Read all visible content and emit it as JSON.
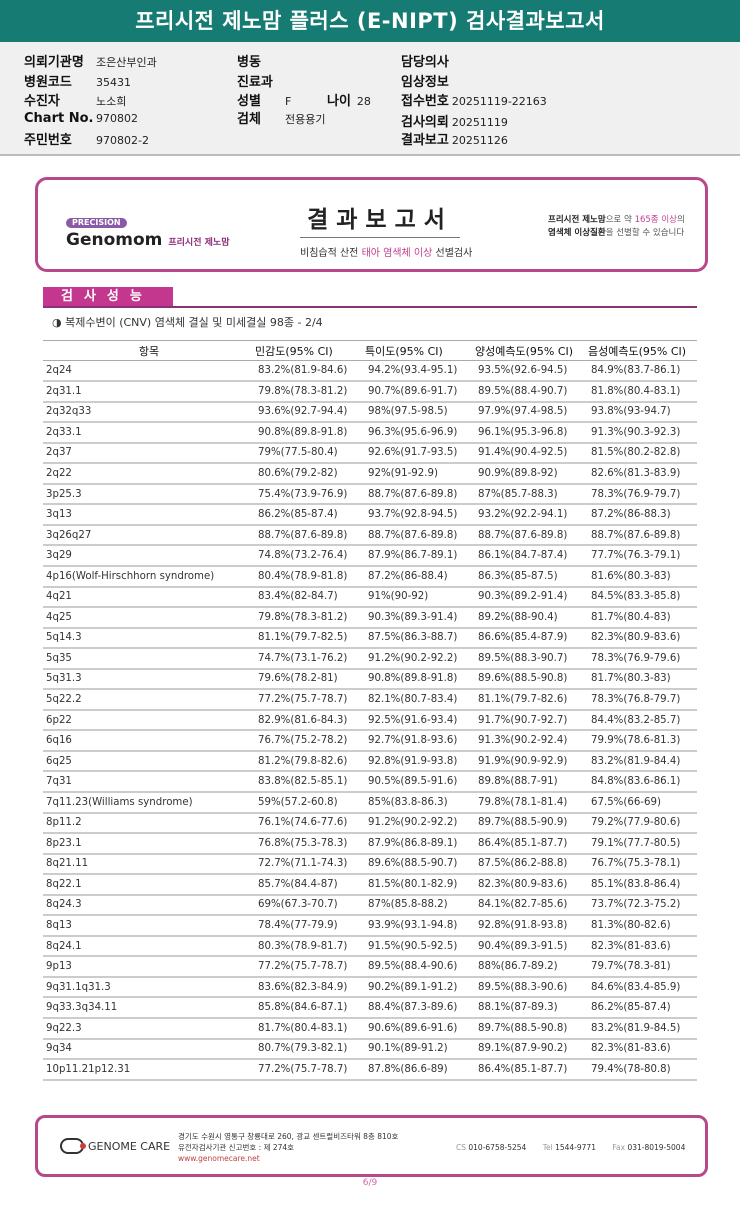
{
  "title": "프리시전 제노맘 플러스 (E-NIPT) 검사결과보고서",
  "info": {
    "institution": {
      "label": "의뢰기관명",
      "value": "조은산부인과"
    },
    "hospital_code": {
      "label": "병원코드",
      "value": "35431"
    },
    "patient": {
      "label": "수진자",
      "value": "노소희"
    },
    "chart_no": {
      "label": "Chart No.",
      "value": "970802"
    },
    "resident_no": {
      "label": "주민번호",
      "value": "970802-2"
    },
    "ward": {
      "label": "병동",
      "value": ""
    },
    "department": {
      "label": "진료과",
      "value": ""
    },
    "sex": {
      "label": "성별",
      "value": "F"
    },
    "age": {
      "label": "나이",
      "value": "28"
    },
    "specimen": {
      "label": "검체",
      "value": "전용용기"
    },
    "doctor": {
      "label": "담당의사",
      "value": ""
    },
    "clinical": {
      "label": "임상정보",
      "value": ""
    },
    "receipt_no": {
      "label": "접수번호",
      "value": "20251119-22163"
    },
    "requested": {
      "label": "검사의뢰",
      "value": "20251119"
    },
    "reported": {
      "label": "결과보고",
      "value": "20251126"
    }
  },
  "report": {
    "logo_badge": "PRECISION",
    "logo_name": "Genomom",
    "logo_sub": "프리시전 제노맘",
    "heading": "결과보고서",
    "sub_a": "비침습적 산전 ",
    "sub_b": "태아 염색체 이상",
    "sub_c": " 선별검사",
    "note_a": "프리시전 제노맘",
    "note_b": "으로 약 ",
    "note_c": "165종 이상",
    "note_d": "의",
    "note_e": "염색체 이상질환",
    "note_f": "을 선별할 수 있습니다"
  },
  "section": {
    "tab": "검사성능",
    "subtitle": "◑ 복제수변이 (CNV) 염색체 결실 및 미세결실 98종 - 2/4"
  },
  "table": {
    "headers": [
      "항목",
      "민감도(95% CI)",
      "특이도(95% CI)",
      "양성예측도(95% CI)",
      "음성예측도(95% CI)"
    ],
    "rows": [
      [
        "2q24",
        "83.2%(81.9-84.6)",
        "94.2%(93.4-95.1)",
        "93.5%(92.6-94.5)",
        "84.9%(83.7-86.1)"
      ],
      [
        "2q31.1",
        "79.8%(78.3-81.2)",
        "90.7%(89.6-91.7)",
        "89.5%(88.4-90.7)",
        "81.8%(80.4-83.1)"
      ],
      [
        "2q32q33",
        "93.6%(92.7-94.4)",
        "98%(97.5-98.5)",
        "97.9%(97.4-98.5)",
        "93.8%(93-94.7)"
      ],
      [
        "2q33.1",
        "90.8%(89.8-91.8)",
        "96.3%(95.6-96.9)",
        "96.1%(95.3-96.8)",
        "91.3%(90.3-92.3)"
      ],
      [
        "2q37",
        "79%(77.5-80.4)",
        "92.6%(91.7-93.5)",
        "91.4%(90.4-92.5)",
        "81.5%(80.2-82.8)"
      ],
      [
        "2q22",
        "80.6%(79.2-82)",
        "92%(91-92.9)",
        "90.9%(89.8-92)",
        "82.6%(81.3-83.9)"
      ],
      [
        "3p25.3",
        "75.4%(73.9-76.9)",
        "88.7%(87.6-89.8)",
        "87%(85.7-88.3)",
        "78.3%(76.9-79.7)"
      ],
      [
        "3q13",
        "86.2%(85-87.4)",
        "93.7%(92.8-94.5)",
        "93.2%(92.2-94.1)",
        "87.2%(86-88.3)"
      ],
      [
        "3q26q27",
        "88.7%(87.6-89.8)",
        "88.7%(87.6-89.8)",
        "88.7%(87.6-89.8)",
        "88.7%(87.6-89.8)"
      ],
      [
        "3q29",
        "74.8%(73.2-76.4)",
        "87.9%(86.7-89.1)",
        "86.1%(84.7-87.4)",
        "77.7%(76.3-79.1)"
      ],
      [
        "4p16(Wolf-Hirschhorn syndrome)",
        "80.4%(78.9-81.8)",
        "87.2%(86-88.4)",
        "86.3%(85-87.5)",
        "81.6%(80.3-83)"
      ],
      [
        "4q21",
        "83.4%(82-84.7)",
        "91%(90-92)",
        "90.3%(89.2-91.4)",
        "84.5%(83.3-85.8)"
      ],
      [
        "4q25",
        "79.8%(78.3-81.2)",
        "90.3%(89.3-91.4)",
        "89.2%(88-90.4)",
        "81.7%(80.4-83)"
      ],
      [
        "5q14.3",
        "81.1%(79.7-82.5)",
        "87.5%(86.3-88.7)",
        "86.6%(85.4-87.9)",
        "82.3%(80.9-83.6)"
      ],
      [
        "5q35",
        "74.7%(73.1-76.2)",
        "91.2%(90.2-92.2)",
        "89.5%(88.3-90.7)",
        "78.3%(76.9-79.6)"
      ],
      [
        "5q31.3",
        "79.6%(78.2-81)",
        "90.8%(89.8-91.8)",
        "89.6%(88.5-90.8)",
        "81.7%(80.3-83)"
      ],
      [
        "5q22.2",
        "77.2%(75.7-78.7)",
        "82.1%(80.7-83.4)",
        "81.1%(79.7-82.6)",
        "78.3%(76.8-79.7)"
      ],
      [
        "6p22",
        "82.9%(81.6-84.3)",
        "92.5%(91.6-93.4)",
        "91.7%(90.7-92.7)",
        "84.4%(83.2-85.7)"
      ],
      [
        "6q16",
        "76.7%(75.2-78.2)",
        "92.7%(91.8-93.6)",
        "91.3%(90.2-92.4)",
        "79.9%(78.6-81.3)"
      ],
      [
        "6q25",
        "81.2%(79.8-82.6)",
        "92.8%(91.9-93.8)",
        "91.9%(90.9-92.9)",
        "83.2%(81.9-84.4)"
      ],
      [
        "7q31",
        "83.8%(82.5-85.1)",
        "90.5%(89.5-91.6)",
        "89.8%(88.7-91)",
        "84.8%(83.6-86.1)"
      ],
      [
        "7q11.23(Williams syndrome)",
        "59%(57.2-60.8)",
        "85%(83.8-86.3)",
        "79.8%(78.1-81.4)",
        "67.5%(66-69)"
      ],
      [
        "8p11.2",
        "76.1%(74.6-77.6)",
        "91.2%(90.2-92.2)",
        "89.7%(88.5-90.9)",
        "79.2%(77.9-80.6)"
      ],
      [
        "8p23.1",
        "76.8%(75.3-78.3)",
        "87.9%(86.8-89.1)",
        "86.4%(85.1-87.7)",
        "79.1%(77.7-80.5)"
      ],
      [
        "8q21.11",
        "72.7%(71.1-74.3)",
        "89.6%(88.5-90.7)",
        "87.5%(86.2-88.8)",
        "76.7%(75.3-78.1)"
      ],
      [
        "8q22.1",
        "85.7%(84.4-87)",
        "81.5%(80.1-82.9)",
        "82.3%(80.9-83.6)",
        "85.1%(83.8-86.4)"
      ],
      [
        "8q24.3",
        "69%(67.3-70.7)",
        "87%(85.8-88.2)",
        "84.1%(82.7-85.6)",
        "73.7%(72.3-75.2)"
      ],
      [
        "8q13",
        "78.4%(77-79.9)",
        "93.9%(93.1-94.8)",
        "92.8%(91.8-93.8)",
        "81.3%(80-82.6)"
      ],
      [
        "8q24.1",
        "80.3%(78.9-81.7)",
        "91.5%(90.5-92.5)",
        "90.4%(89.3-91.5)",
        "82.3%(81-83.6)"
      ],
      [
        "9p13",
        "77.2%(75.7-78.7)",
        "89.5%(88.4-90.6)",
        "88%(86.7-89.2)",
        "79.7%(78.3-81)"
      ],
      [
        "9q31.1q31.3",
        "83.6%(82.3-84.9)",
        "90.2%(89.1-91.2)",
        "89.5%(88.3-90.6)",
        "84.6%(83.4-85.9)"
      ],
      [
        "9q33.3q34.11",
        "85.8%(84.6-87.1)",
        "88.4%(87.3-89.6)",
        "88.1%(87-89.3)",
        "86.2%(85-87.4)"
      ],
      [
        "9q22.3",
        "81.7%(80.4-83.1)",
        "90.6%(89.6-91.6)",
        "89.7%(88.5-90.8)",
        "83.2%(81.9-84.5)"
      ],
      [
        "9q34",
        "80.7%(79.3-82.1)",
        "90.1%(89-91.2)",
        "89.1%(87.9-90.2)",
        "82.3%(81-83.6)"
      ],
      [
        "10p11.21p12.31",
        "77.2%(75.7-78.7)",
        "87.8%(86.6-89)",
        "86.4%(85.1-87.7)",
        "79.4%(78-80.8)"
      ]
    ]
  },
  "footer": {
    "company": "GENOME CARE",
    "address": "경기도 수원시 영통구 창룡대로 260, 광교 센트럴비즈타워 8층 810호",
    "registration": "유전자검사기관 신고번호 : 제 274호",
    "website": "www.genomecare.net",
    "cs_label": "CS",
    "cs": "010-6758-5254",
    "tel_label": "Tel",
    "tel": "1544-9771",
    "fax_label": "Fax",
    "fax": "031-8019-5004"
  },
  "page": "6/9",
  "colors": {
    "title_bar": "#167b72",
    "accent": "#c4378f",
    "border": "#b8488c"
  }
}
